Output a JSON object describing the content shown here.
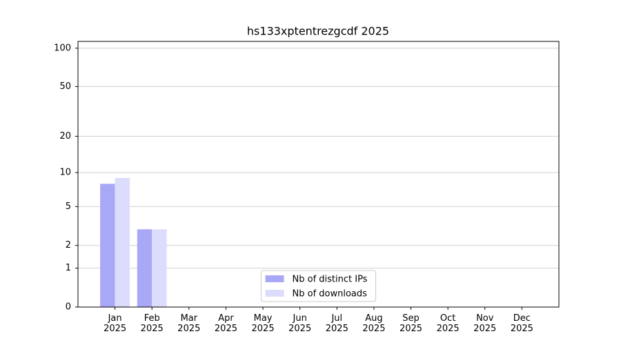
{
  "chart_data": {
    "type": "bar",
    "title": "hs133xptentrezgcdf 2025",
    "categories": [
      "Jan 2025",
      "Feb 2025",
      "Mar 2025",
      "Apr 2025",
      "May 2025",
      "Jun 2025",
      "Jul 2025",
      "Aug 2025",
      "Sep 2025",
      "Oct 2025",
      "Nov 2025",
      "Dec 2025"
    ],
    "series": [
      {
        "name": "Nb of distinct IPs",
        "color": "#a8a8f6",
        "values": [
          8,
          3,
          0,
          0,
          0,
          0,
          0,
          0,
          0,
          0,
          0,
          0
        ]
      },
      {
        "name": "Nb of downloads",
        "color": "#dcdcfc",
        "values": [
          9,
          3,
          0,
          0,
          0,
          0,
          0,
          0,
          0,
          0,
          0,
          0
        ]
      }
    ],
    "y_scale": "log1p",
    "ylim": [
      0,
      113
    ],
    "yticks": [
      0,
      1,
      2,
      5,
      10,
      20,
      50,
      100
    ],
    "grid": true,
    "legend": "lower center"
  }
}
